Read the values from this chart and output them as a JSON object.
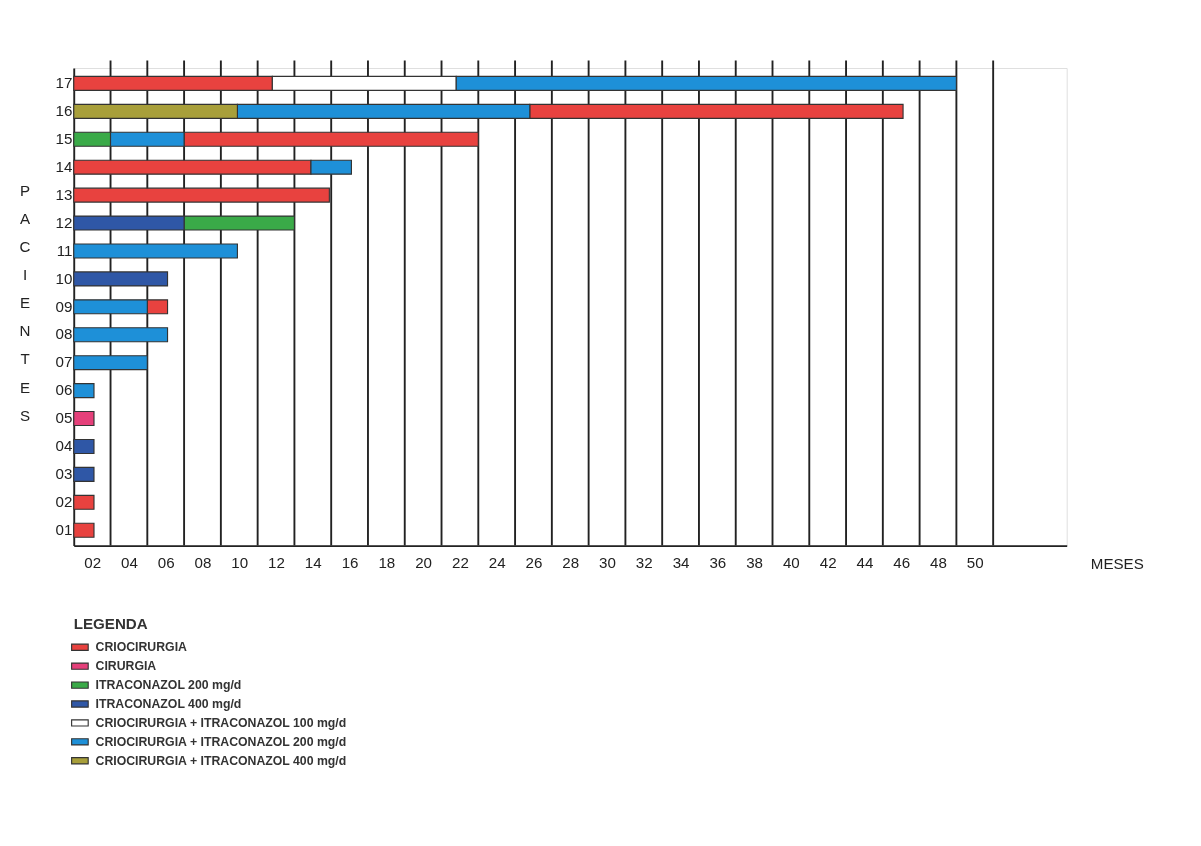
{
  "chart_data": {
    "type": "bar",
    "orientation": "horizontal",
    "ylabel": "PACIENTES",
    "xlabel": "MESES",
    "legend_title": "LEGENDA",
    "legend": "bottom left",
    "grid": "x",
    "categories": [
      "17",
      "16",
      "15",
      "14",
      "13",
      "12",
      "11",
      "10",
      "09",
      "08",
      "07",
      "06",
      "05",
      "04",
      "03",
      "02",
      "01"
    ],
    "xlim": [
      1,
      55
    ],
    "xticks": [
      {
        "value": 2,
        "label": "02"
      },
      {
        "value": 3,
        "label": null
      },
      {
        "value": 4,
        "label": "04"
      },
      {
        "value": 5,
        "label": null
      },
      {
        "value": 6,
        "label": "06"
      },
      {
        "value": 7,
        "label": null
      },
      {
        "value": 8,
        "label": "08"
      },
      {
        "value": 9,
        "label": null
      },
      {
        "value": 10,
        "label": "10"
      },
      {
        "value": 11,
        "label": null
      },
      {
        "value": 12,
        "label": "12"
      },
      {
        "value": 13,
        "label": null
      },
      {
        "value": 14,
        "label": "14"
      },
      {
        "value": 15,
        "label": null
      },
      {
        "value": 16,
        "label": "16"
      },
      {
        "value": 17,
        "label": null
      },
      {
        "value": 18,
        "label": "18"
      },
      {
        "value": 19,
        "label": null
      },
      {
        "value": 20,
        "label": "20"
      },
      {
        "value": 21,
        "label": null
      },
      {
        "value": 22,
        "label": "22"
      },
      {
        "value": 23,
        "label": null
      },
      {
        "value": 24,
        "label": "24"
      },
      {
        "value": 25,
        "label": null
      },
      {
        "value": 26,
        "label": "26"
      },
      {
        "value": 27,
        "label": null
      },
      {
        "value": 28,
        "label": "28"
      },
      {
        "value": 29,
        "label": null
      },
      {
        "value": 30,
        "label": "30"
      },
      {
        "value": 31,
        "label": null
      },
      {
        "value": 32,
        "label": "32"
      },
      {
        "value": 33,
        "label": null
      },
      {
        "value": 34,
        "label": "34"
      },
      {
        "value": 35,
        "label": null
      },
      {
        "value": 36,
        "label": "36"
      },
      {
        "value": 37,
        "label": null
      },
      {
        "value": 38,
        "label": "38"
      },
      {
        "value": 39,
        "label": null
      },
      {
        "value": 40,
        "label": "40"
      },
      {
        "value": 41,
        "label": null
      },
      {
        "value": 42,
        "label": "42"
      },
      {
        "value": 43,
        "label": null
      },
      {
        "value": 44,
        "label": "44"
      },
      {
        "value": 45,
        "label": null
      },
      {
        "value": 46,
        "label": "46"
      },
      {
        "value": 47,
        "label": null
      },
      {
        "value": 48,
        "label": "48"
      },
      {
        "value": 49,
        "label": null
      },
      {
        "value": 50,
        "label": "50"
      },
      {
        "value": 51,
        "label": null
      }
    ],
    "series": [
      {
        "name": "CRIOCIRURGIA",
        "color": "#e8423f",
        "base": [
          1,
          25.8,
          7,
          1,
          1,
          null,
          null,
          null,
          5,
          null,
          null,
          null,
          null,
          null,
          null,
          1,
          1
        ],
        "values": [
          10.8,
          20.3,
          16,
          12.9,
          13.9,
          null,
          null,
          null,
          1.1,
          null,
          null,
          null,
          null,
          null,
          null,
          1.1,
          1.1
        ]
      },
      {
        "name": "CIRURGIA",
        "color": "#e5407a",
        "base": [
          null,
          null,
          null,
          null,
          null,
          null,
          null,
          null,
          null,
          null,
          null,
          null,
          1,
          null,
          null,
          null,
          null
        ],
        "values": [
          null,
          null,
          null,
          null,
          null,
          null,
          null,
          null,
          null,
          null,
          null,
          null,
          1.1,
          null,
          null,
          null,
          null
        ]
      },
      {
        "name": "ITRACONAZOL 200 mg/d",
        "color": "#3aaa48",
        "base": [
          null,
          null,
          1,
          null,
          null,
          7,
          null,
          null,
          null,
          null,
          null,
          null,
          null,
          null,
          null,
          null,
          null
        ],
        "values": [
          null,
          null,
          2,
          null,
          null,
          6,
          null,
          null,
          null,
          null,
          null,
          null,
          null,
          null,
          null,
          null,
          null
        ]
      },
      {
        "name": "ITRACONAZOL 400 mg/d",
        "color": "#2f57a6",
        "base": [
          null,
          null,
          null,
          null,
          null,
          1,
          null,
          1,
          null,
          null,
          null,
          null,
          null,
          1,
          1,
          null,
          null
        ],
        "values": [
          null,
          null,
          null,
          null,
          null,
          6,
          null,
          5.1,
          null,
          null,
          null,
          null,
          null,
          1.1,
          1.1,
          null,
          null
        ]
      },
      {
        "name": "CRIOCIRURGIA + ITRACONAZOL 100 mg/d",
        "color": "#ffffff",
        "base": [
          11.8,
          null,
          null,
          null,
          null,
          null,
          null,
          null,
          null,
          null,
          null,
          null,
          null,
          null,
          null,
          null,
          null
        ],
        "values": [
          10,
          null,
          null,
          null,
          null,
          null,
          null,
          null,
          null,
          null,
          null,
          null,
          null,
          null,
          null,
          null,
          null
        ]
      },
      {
        "name": "CRIOCIRURGIA + ITRACONAZOL 200 mg/d",
        "color": "#1e90d8",
        "base": [
          21.8,
          9.9,
          3,
          13.9,
          null,
          null,
          1,
          null,
          1,
          1,
          1,
          1,
          null,
          null,
          null,
          null,
          null
        ],
        "values": [
          27.2,
          15.9,
          4,
          2.2,
          null,
          null,
          8.9,
          null,
          4,
          5.1,
          4,
          1.1,
          null,
          null,
          null,
          null,
          null
        ]
      },
      {
        "name": "CRIOCIRURGIA + ITRACONAZOL 400 mg/d",
        "color": "#a89f3a",
        "base": [
          null,
          1,
          null,
          null,
          null,
          null,
          null,
          null,
          null,
          null,
          null,
          null,
          null,
          null,
          null,
          null,
          null
        ],
        "values": [
          null,
          8.9,
          null,
          null,
          null,
          null,
          null,
          null,
          null,
          null,
          null,
          null,
          null,
          null,
          null,
          null,
          null
        ]
      }
    ]
  }
}
